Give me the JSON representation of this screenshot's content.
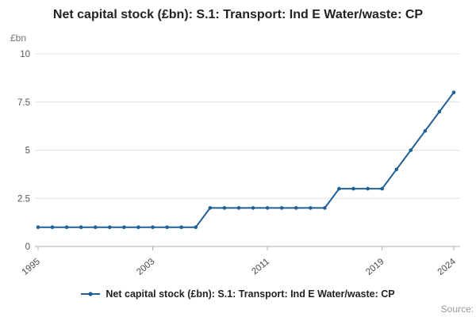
{
  "chart_data": {
    "type": "line",
    "title": "Net capital stock (£bn): S.1: Transport: Ind E Water/waste: CP",
    "ylabel": "£bn",
    "xlabel": "",
    "x": [
      1995,
      1996,
      1997,
      1998,
      1999,
      2000,
      2001,
      2002,
      2003,
      2004,
      2005,
      2006,
      2007,
      2008,
      2009,
      2010,
      2011,
      2012,
      2013,
      2014,
      2015,
      2016,
      2017,
      2018,
      2019,
      2020,
      2021,
      2022,
      2023,
      2024
    ],
    "values": [
      1,
      1,
      1,
      1,
      1,
      1,
      1,
      1,
      1,
      1,
      1,
      1,
      2,
      2,
      2,
      2,
      2,
      2,
      2,
      2,
      2,
      3,
      3,
      3,
      3,
      4,
      5,
      6,
      7,
      8
    ],
    "ylim": [
      0,
      10
    ],
    "ytick_values": [
      0,
      2.5,
      5,
      7.5,
      10
    ],
    "ytick_labels": [
      "0",
      "2.5",
      "5",
      "7.5",
      "10"
    ],
    "xticks": [
      1995,
      2003,
      2011,
      2019,
      2024
    ],
    "grid": true,
    "legend_position": "bottom",
    "line_color": "#206095",
    "grid_color": "#e2e2e2",
    "axis_color": "#b0b0b0"
  },
  "legend": {
    "label": "Net capital stock (£bn): S.1: Transport: Ind E Water/waste: CP"
  },
  "footer": {
    "source": "Source:"
  }
}
